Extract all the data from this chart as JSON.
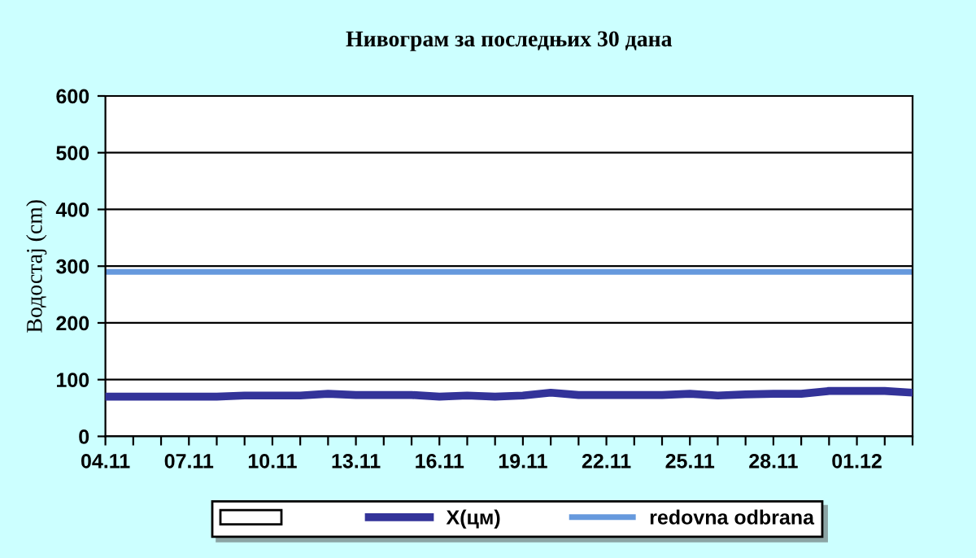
{
  "chart_data": {
    "type": "line",
    "title": "Нивограм за последњих 30 дана",
    "ylabel": "Водостај (cm)",
    "categories": [
      "04.11",
      null,
      null,
      "07.11",
      null,
      null,
      "10.11",
      null,
      null,
      "13.11",
      null,
      null,
      "16.11",
      null,
      null,
      "19.11",
      null,
      null,
      "22.11",
      null,
      null,
      "25.11",
      null,
      null,
      "28.11",
      null,
      null,
      "01.12",
      null,
      null
    ],
    "series": [
      {
        "type": "bar",
        "color": "#ffffff",
        "values": [
          null,
          null,
          null,
          null,
          null,
          null,
          null,
          null,
          null,
          null,
          null,
          null,
          null,
          null,
          null,
          null,
          null,
          null,
          null,
          null,
          null,
          null,
          null,
          null,
          null,
          null,
          null,
          null,
          null,
          null
        ]
      },
      {
        "name": "X(цм)",
        "color": "#333399",
        "values": [
          70,
          70,
          70,
          70,
          70,
          72,
          72,
          72,
          75,
          73,
          73,
          73,
          70,
          72,
          70,
          72,
          77,
          73,
          73,
          73,
          73,
          75,
          72,
          74,
          75,
          75,
          80,
          80,
          80,
          77
        ]
      }
    ],
    "ref_lines": [
      {
        "axis": "y",
        "value": 290,
        "label": "redovna odbrana",
        "color": "#6699dd"
      }
    ],
    "ylim": [
      0,
      600
    ],
    "yticks": [
      0,
      100,
      200,
      300,
      400,
      500,
      600
    ],
    "grid": "y",
    "legend": "bottom"
  }
}
